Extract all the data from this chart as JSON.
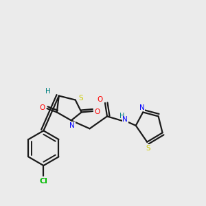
{
  "background_color": "#ebebeb",
  "bond_color": "#1a1a1a",
  "atom_colors": {
    "N": "#0000ff",
    "O": "#ff0000",
    "S": "#cccc00",
    "Cl": "#00bb00",
    "H": "#008080",
    "C": "#1a1a1a"
  },
  "figsize": [
    3.0,
    3.0
  ],
  "dpi": 100
}
